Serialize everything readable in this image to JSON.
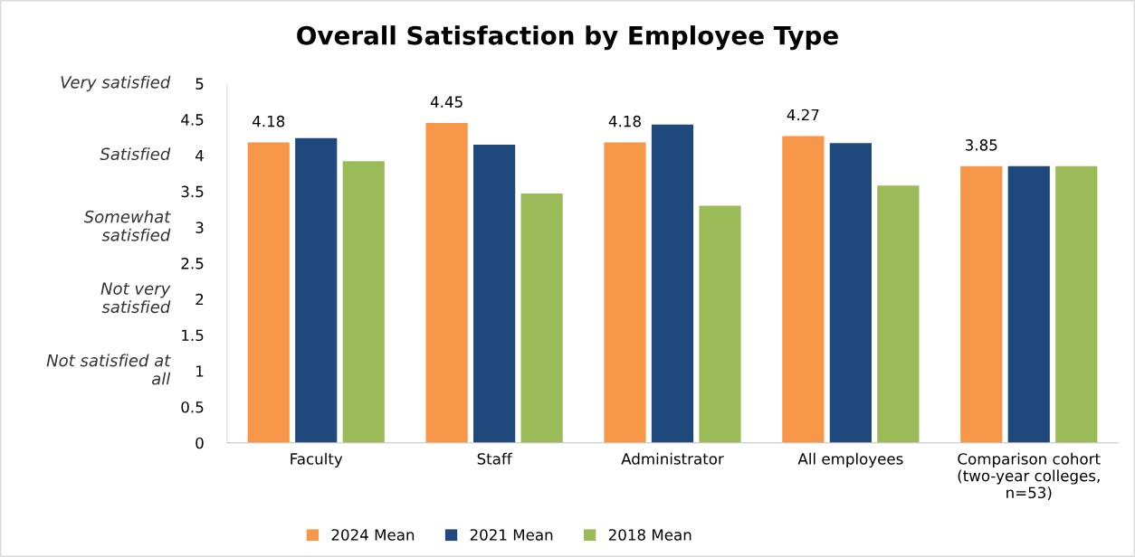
{
  "chart_data": {
    "type": "bar",
    "title": "Overall Satisfaction by Employee Type",
    "categories": [
      "Faculty",
      "Staff",
      "Administrator",
      "All employees",
      "Comparison cohort\n(two-year colleges,\nn=53)"
    ],
    "series": [
      {
        "name": "2024 Mean",
        "color": "#f79646",
        "values": [
          4.18,
          4.45,
          4.18,
          4.27,
          3.85
        ],
        "value_labels": [
          "4.18",
          "4.45",
          "4.18",
          "4.27",
          "3.85"
        ]
      },
      {
        "name": "2021 Mean",
        "color": "#1f497d",
        "values": [
          4.24,
          4.15,
          4.43,
          4.17,
          3.85
        ]
      },
      {
        "name": "2018 Mean",
        "color": "#9bbb59",
        "values": [
          3.92,
          3.47,
          3.3,
          3.58,
          3.85
        ]
      }
    ],
    "ylim": [
      0,
      5
    ],
    "yticks": [
      0,
      0.5,
      1,
      1.5,
      2,
      2.5,
      3,
      3.5,
      4,
      4.5,
      5
    ],
    "annotations": [
      "Not satisfied at\nall",
      "Not very\nsatisfied",
      "Somewhat\nsatisfied",
      "Satisfied",
      "Very satisfied"
    ],
    "grid": false,
    "legend": "bottom"
  }
}
